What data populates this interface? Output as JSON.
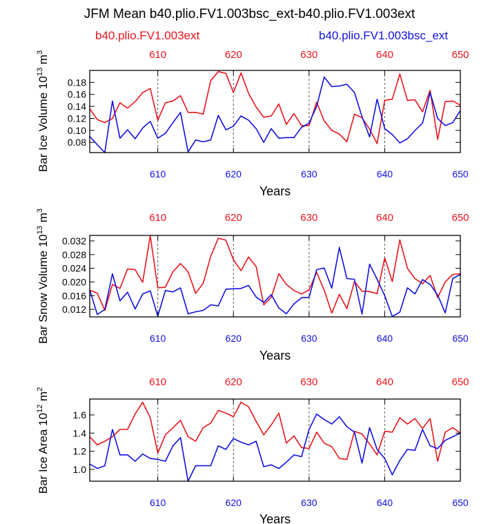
{
  "figure": {
    "title": "JFM Mean b40.plio.FV1.003bsc_ext-b40.plio.FV1.003ext",
    "legend_red": "b40.plio.FV1.003ext",
    "legend_blue": "b40.plio.FV1.003bsc_ext",
    "colors": {
      "red": "#e8141b",
      "blue": "#1010e0",
      "axis": "#000000",
      "grid": "#555555"
    }
  },
  "chart_data": [
    {
      "type": "line",
      "title": "",
      "ylabel": "Bar Ice Volume 10^13 m^3",
      "ylabel_main": "Bar Ice Volume 10",
      "ylabel_exp": "13",
      "ylabel_unit": "m",
      "ylabel_unit_exp": "3",
      "xlabel": "Years",
      "xlim": [
        601,
        650
      ],
      "ylim": [
        0.063,
        0.2
      ],
      "yticks": [
        0.08,
        0.1,
        0.12,
        0.14,
        0.16,
        0.18
      ],
      "ytick_labels": [
        "0.08",
        "0.10",
        "0.12",
        "0.14",
        "0.16",
        "0.18"
      ],
      "xticks": [
        610,
        620,
        630,
        640,
        650
      ],
      "xtick_labels": [
        "610",
        "620",
        "630",
        "640",
        "650"
      ],
      "x": [
        601,
        602,
        603,
        604,
        605,
        606,
        607,
        608,
        609,
        610,
        611,
        612,
        613,
        614,
        615,
        616,
        617,
        618,
        619,
        620,
        621,
        622,
        623,
        624,
        625,
        626,
        627,
        628,
        629,
        630,
        631,
        632,
        633,
        634,
        635,
        636,
        637,
        638,
        639,
        640,
        641,
        642,
        643,
        644,
        645,
        646,
        647,
        648,
        649,
        650
      ],
      "series": [
        {
          "name": "b40.plio.FV1.003ext",
          "color": "red",
          "values": [
            0.136,
            0.118,
            0.113,
            0.12,
            0.146,
            0.137,
            0.148,
            0.163,
            0.17,
            0.117,
            0.146,
            0.149,
            0.158,
            0.13,
            0.13,
            0.127,
            0.183,
            0.198,
            0.195,
            0.163,
            0.196,
            0.162,
            0.139,
            0.122,
            0.124,
            0.144,
            0.11,
            0.128,
            0.108,
            0.108,
            0.147,
            0.116,
            0.1,
            0.094,
            0.081,
            0.127,
            0.121,
            0.102,
            0.078,
            0.15,
            0.152,
            0.194,
            0.15,
            0.151,
            0.131,
            0.167,
            0.085,
            0.148,
            0.149,
            0.142
          ]
        },
        {
          "name": "b40.plio.FV1.003bsc_ext",
          "color": "blue",
          "values": [
            0.09,
            0.076,
            0.063,
            0.149,
            0.087,
            0.101,
            0.086,
            0.104,
            0.115,
            0.087,
            0.095,
            0.113,
            0.13,
            0.064,
            0.084,
            0.081,
            0.084,
            0.125,
            0.101,
            0.107,
            0.124,
            0.117,
            0.103,
            0.08,
            0.103,
            0.087,
            0.088,
            0.088,
            0.105,
            0.112,
            0.14,
            0.189,
            0.173,
            0.174,
            0.177,
            0.163,
            0.123,
            0.089,
            0.152,
            0.103,
            0.093,
            0.079,
            0.086,
            0.1,
            0.112,
            0.163,
            0.12,
            0.108,
            0.113,
            0.133
          ]
        }
      ]
    },
    {
      "type": "line",
      "title": "",
      "ylabel": "Bar Snow Volume 10^13 m^3",
      "ylabel_main": "Bar Snow Volume 10",
      "ylabel_exp": "13",
      "ylabel_unit": "m",
      "ylabel_unit_exp": "3",
      "xlabel": "Years",
      "xlim": [
        601,
        650
      ],
      "ylim": [
        0.0098,
        0.0336
      ],
      "yticks": [
        0.012,
        0.016,
        0.02,
        0.024,
        0.028,
        0.032
      ],
      "ytick_labels": [
        "0.012",
        "0.016",
        "0.020",
        "0.024",
        "0.028",
        "0.032"
      ],
      "xticks": [
        610,
        620,
        630,
        640,
        650
      ],
      "xtick_labels": [
        "610",
        "620",
        "630",
        "640",
        "650"
      ],
      "x": [
        601,
        602,
        603,
        604,
        605,
        606,
        607,
        608,
        609,
        610,
        611,
        612,
        613,
        614,
        615,
        616,
        617,
        618,
        619,
        620,
        621,
        622,
        623,
        624,
        625,
        626,
        627,
        628,
        629,
        630,
        631,
        632,
        633,
        634,
        635,
        636,
        637,
        638,
        639,
        640,
        641,
        642,
        643,
        644,
        645,
        646,
        647,
        648,
        649,
        650
      ],
      "series": [
        {
          "name": "b40.plio.FV1.003ext",
          "color": "red",
          "values": [
            0.0176,
            0.0167,
            0.0117,
            0.0193,
            0.0181,
            0.0238,
            0.0236,
            0.0199,
            0.0335,
            0.0183,
            0.0185,
            0.023,
            0.0254,
            0.023,
            0.0167,
            0.0196,
            0.0275,
            0.0328,
            0.0322,
            0.0265,
            0.0233,
            0.0273,
            0.0245,
            0.0133,
            0.0155,
            0.0224,
            0.0193,
            0.0175,
            0.0165,
            0.0177,
            0.0228,
            0.0176,
            0.0109,
            0.0164,
            0.0122,
            0.0201,
            0.0173,
            0.0172,
            0.0166,
            0.027,
            0.0201,
            0.0323,
            0.024,
            0.021,
            0.0195,
            0.0219,
            0.0154,
            0.02,
            0.0222,
            0.0224
          ]
        },
        {
          "name": "b40.plio.FV1.003bsc_ext",
          "color": "blue",
          "values": [
            0.0177,
            0.0105,
            0.012,
            0.0224,
            0.0145,
            0.017,
            0.0121,
            0.0165,
            0.0174,
            0.01,
            0.0175,
            0.0171,
            0.0183,
            0.0107,
            0.0113,
            0.0117,
            0.0133,
            0.013,
            0.0179,
            0.018,
            0.0181,
            0.019,
            0.0156,
            0.014,
            0.0163,
            0.0124,
            0.0107,
            0.0136,
            0.0154,
            0.0155,
            0.0236,
            0.0241,
            0.0182,
            0.0301,
            0.021,
            0.0208,
            0.0106,
            0.0252,
            0.0208,
            0.016,
            0.0099,
            0.0112,
            0.0183,
            0.0165,
            0.0207,
            0.0193,
            0.0162,
            0.011,
            0.021,
            0.0222
          ]
        }
      ]
    },
    {
      "type": "line",
      "title": "",
      "ylabel": "Bar Ice Area 10^12 m^2",
      "ylabel_main": "Bar Ice Area 10",
      "ylabel_exp": "12",
      "ylabel_unit": "m",
      "ylabel_unit_exp": "2",
      "xlabel": "Years",
      "xlim": [
        601,
        650
      ],
      "ylim": [
        0.87,
        1.775
      ],
      "yticks": [
        1.0,
        1.2,
        1.4,
        1.6
      ],
      "ytick_labels": [
        "1.0",
        "1.2",
        "1.4",
        "1.6"
      ],
      "xticks": [
        610,
        620,
        630,
        640,
        650
      ],
      "xtick_labels": [
        "610",
        "620",
        "630",
        "640",
        "650"
      ],
      "x": [
        601,
        602,
        603,
        604,
        605,
        606,
        607,
        608,
        609,
        610,
        611,
        612,
        613,
        614,
        615,
        616,
        617,
        618,
        619,
        620,
        621,
        622,
        623,
        624,
        625,
        626,
        627,
        628,
        629,
        630,
        631,
        632,
        633,
        634,
        635,
        636,
        637,
        638,
        639,
        640,
        641,
        642,
        643,
        644,
        645,
        646,
        647,
        648,
        649,
        650
      ],
      "series": [
        {
          "name": "b40.plio.FV1.003ext",
          "color": "red",
          "values": [
            1.36,
            1.27,
            1.31,
            1.36,
            1.44,
            1.44,
            1.61,
            1.74,
            1.57,
            1.18,
            1.38,
            1.46,
            1.54,
            1.36,
            1.31,
            1.46,
            1.51,
            1.65,
            1.62,
            1.58,
            1.74,
            1.69,
            1.53,
            1.38,
            1.49,
            1.62,
            1.29,
            1.37,
            1.24,
            1.23,
            1.41,
            1.29,
            1.25,
            1.12,
            1.11,
            1.42,
            1.39,
            1.28,
            1.16,
            1.42,
            1.41,
            1.57,
            1.5,
            1.56,
            1.45,
            1.56,
            1.09,
            1.41,
            1.46,
            1.4
          ]
        },
        {
          "name": "b40.plio.FV1.003bsc_ext",
          "color": "blue",
          "values": [
            1.06,
            1.01,
            1.04,
            1.44,
            1.16,
            1.16,
            1.09,
            1.17,
            1.12,
            1.11,
            1.09,
            1.26,
            1.35,
            0.87,
            1.04,
            1.04,
            1.04,
            1.26,
            1.22,
            1.34,
            1.3,
            1.27,
            1.31,
            1.03,
            1.05,
            1.01,
            1.08,
            1.16,
            1.14,
            1.44,
            1.61,
            1.55,
            1.5,
            1.58,
            1.47,
            1.41,
            1.07,
            1.46,
            1.22,
            1.12,
            0.94,
            1.1,
            1.22,
            1.21,
            1.44,
            1.26,
            1.23,
            1.32,
            1.36,
            1.4
          ]
        }
      ]
    }
  ]
}
